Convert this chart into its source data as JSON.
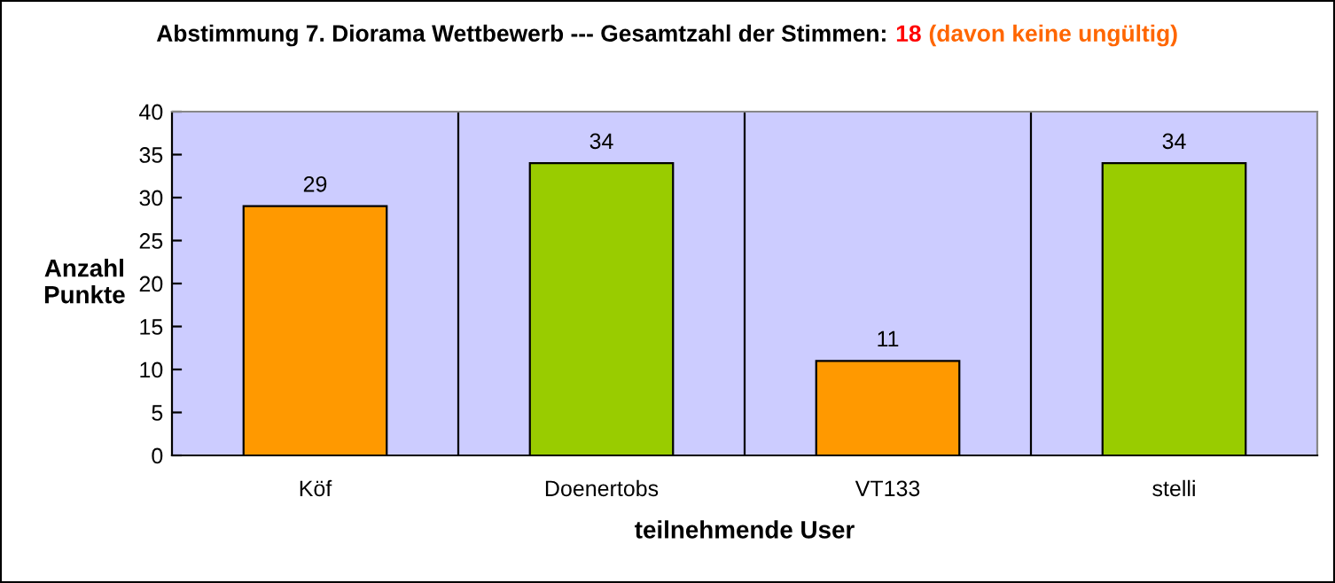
{
  "chart_data": {
    "type": "bar",
    "title": "Abstimmung 7. Diorama Wettbewerb --- Gesamtzahl der Stimmen:",
    "annotations": [
      "18",
      "(davon keine ungültig)"
    ],
    "xlabel": "teilnehmende User",
    "ylabel": "Anzahl\nPunkte",
    "categories": [
      "Köf",
      "Doenertobs",
      "VT133",
      "stelli"
    ],
    "values": [
      29,
      34,
      11,
      34
    ],
    "colors": [
      "#ff9900",
      "#99cc00",
      "#ff9900",
      "#99cc00"
    ],
    "ylim": [
      0,
      40
    ],
    "yticks": [
      0,
      5,
      10,
      15,
      20,
      25,
      30,
      35,
      40
    ],
    "grid": "x",
    "data_labels": true
  }
}
